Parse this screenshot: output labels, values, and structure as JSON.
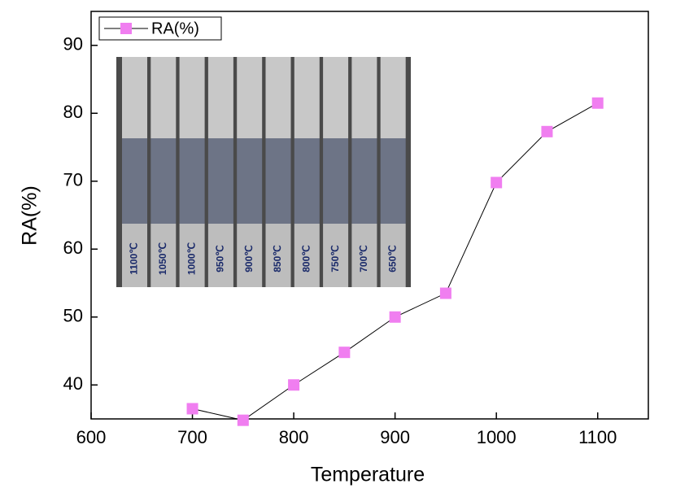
{
  "chart_data": {
    "type": "line",
    "x_label": "Temperature",
    "y_label": "RA(%)",
    "x": [
      700,
      750,
      800,
      850,
      900,
      950,
      1000,
      1050,
      1100
    ],
    "series": [
      {
        "name": "RA(%)",
        "color": "#f07ef0",
        "values": [
          36.5,
          34.8,
          40,
          44.8,
          50,
          53.5,
          69.8,
          77.3,
          81.5
        ]
      }
    ],
    "xlim": [
      600,
      1150
    ],
    "xticks": [
      600,
      700,
      800,
      900,
      1000,
      1100
    ],
    "ylim": [
      35,
      95
    ],
    "yticks": [
      40,
      50,
      60,
      70,
      80,
      90
    ],
    "grid": false,
    "legend": "upper left",
    "inset_labels": [
      "1100℃",
      "1050℃",
      "1000℃",
      "950℃",
      "900℃",
      "850℃",
      "800℃",
      "750℃",
      "700℃",
      "650℃"
    ]
  }
}
